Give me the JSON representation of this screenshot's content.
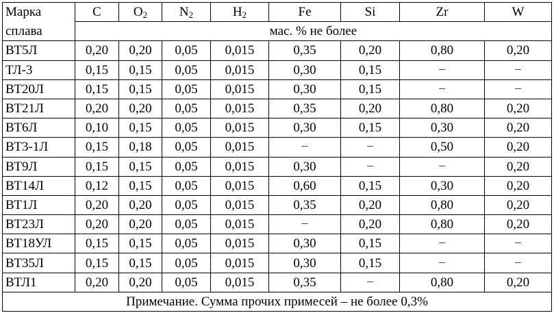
{
  "header": {
    "grade_line1": "Марка",
    "grade_line2": "сплава",
    "units": "мас. % не более",
    "columns": [
      {
        "base": "C",
        "sub": ""
      },
      {
        "base": "O",
        "sub": "2"
      },
      {
        "base": "N",
        "sub": "2"
      },
      {
        "base": "H",
        "sub": "2"
      },
      {
        "base": "Fe",
        "sub": ""
      },
      {
        "base": "Si",
        "sub": ""
      },
      {
        "base": "Zr",
        "sub": ""
      },
      {
        "base": "W",
        "sub": ""
      }
    ]
  },
  "rows": [
    {
      "grade": "ВТ5Л",
      "values": [
        "0,20",
        "0,20",
        "0,05",
        "0,015",
        "0,35",
        "0,20",
        "0,80",
        "0,20"
      ]
    },
    {
      "grade": "ТЛ-3",
      "values": [
        "0,15",
        "0,15",
        "0,05",
        "0,015",
        "0,30",
        "0,15",
        "−",
        "−"
      ]
    },
    {
      "grade": "ВТ20Л",
      "values": [
        "0,15",
        "0,15",
        "0,05",
        "0,015",
        "0,30",
        "0,15",
        "−",
        "−"
      ]
    },
    {
      "grade": "ВТ21Л",
      "values": [
        "0,20",
        "0,20",
        "0,05",
        "0,015",
        "0,35",
        "0,20",
        "0,80",
        "0,20"
      ]
    },
    {
      "grade": "ВТ6Л",
      "values": [
        "0,10",
        "0,15",
        "0,05",
        "0,015",
        "0,30",
        "0,15",
        "0,30",
        "0,20"
      ]
    },
    {
      "grade": "ВТ3-1Л",
      "values": [
        "0,15",
        "0,18",
        "0,05",
        "0,015",
        "−",
        "−",
        "0,50",
        "0,20"
      ]
    },
    {
      "grade": "ВТ9Л",
      "values": [
        "0,15",
        "0,15",
        "0,05",
        "0,015",
        "0,30",
        "−",
        "−",
        "0,20"
      ]
    },
    {
      "grade": "ВТ14Л",
      "values": [
        "0,12",
        "0,15",
        "0,05",
        "0,015",
        "0,60",
        "0,15",
        "0,30",
        "0,20"
      ]
    },
    {
      "grade": "ВТ1Л",
      "values": [
        "0,20",
        "0,20",
        "0,05",
        "0,015",
        "0,35",
        "0,20",
        "0,80",
        "0,20"
      ]
    },
    {
      "grade": "ВТ23Л",
      "values": [
        "0,20",
        "0,20",
        "0,05",
        "0,015",
        "−",
        "0,20",
        "0,80",
        "0,20"
      ]
    },
    {
      "grade": "ВТ18УЛ",
      "values": [
        "0,15",
        "0,15",
        "0,05",
        "0,015",
        "0,30",
        "0,15",
        "−",
        "−"
      ]
    },
    {
      "grade": "ВТ35Л",
      "values": [
        "0,15",
        "0,15",
        "0,05",
        "0,015",
        "0,30",
        "0,15",
        "−",
        "−"
      ]
    },
    {
      "grade": "ВТЛ1",
      "values": [
        "0,20",
        "0,20",
        "0,05",
        "0,015",
        "0,35",
        "−",
        "0,80",
        "0,20"
      ]
    }
  ],
  "footnote": "Примечание. Сумма прочих примесей – не более 0,3%"
}
